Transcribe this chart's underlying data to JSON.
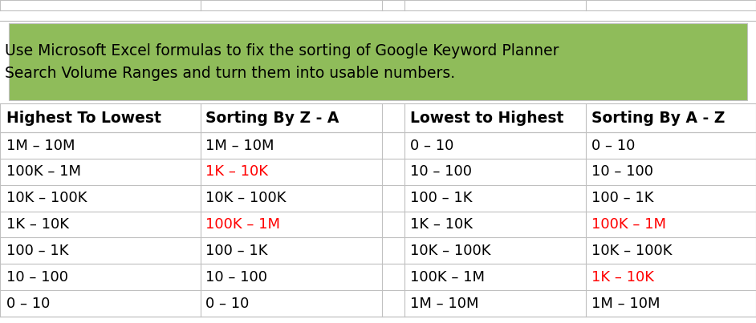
{
  "title": "Use Microsoft Excel formulas to fix the sorting of Google Keyword Planner\nSearch Volume Ranges and turn them into usable numbers.",
  "title_bg": "#8FBC5A",
  "title_fontsize": 13.5,
  "header_fontsize": 13.5,
  "cell_fontsize": 13,
  "background_color": "#FFFFFF",
  "grid_color": "#C0C0C0",
  "col1_data": [
    "1M – 10M",
    "100K – 1M",
    "10K – 100K",
    "1K – 10K",
    "100 – 1K",
    "10 – 100",
    "0 – 10"
  ],
  "col2_data": [
    {
      "text": "1M – 10M",
      "color": "#000000"
    },
    {
      "text": "1K – 10K",
      "color": "#FF0000"
    },
    {
      "text": "10K – 100K",
      "color": "#000000"
    },
    {
      "text": "100K – 1M",
      "color": "#FF0000"
    },
    {
      "text": "100 – 1K",
      "color": "#000000"
    },
    {
      "text": "10 – 100",
      "color": "#000000"
    },
    {
      "text": "0 – 10",
      "color": "#000000"
    }
  ],
  "col3_data": [
    "0 – 10",
    "10 – 100",
    "100 – 1K",
    "1K – 10K",
    "10K – 100K",
    "100K – 1M",
    "1M – 10M"
  ],
  "col4_data": [
    {
      "text": "0 – 10",
      "color": "#000000"
    },
    {
      "text": "10 – 100",
      "color": "#000000"
    },
    {
      "text": "100 – 1K",
      "color": "#000000"
    },
    {
      "text": "100K – 1M",
      "color": "#FF0000"
    },
    {
      "text": "10K – 100K",
      "color": "#000000"
    },
    {
      "text": "1K – 10K",
      "color": "#FF0000"
    },
    {
      "text": "1M – 10M",
      "color": "#000000"
    }
  ],
  "fig_width": 9.42,
  "fig_height": 4.03
}
